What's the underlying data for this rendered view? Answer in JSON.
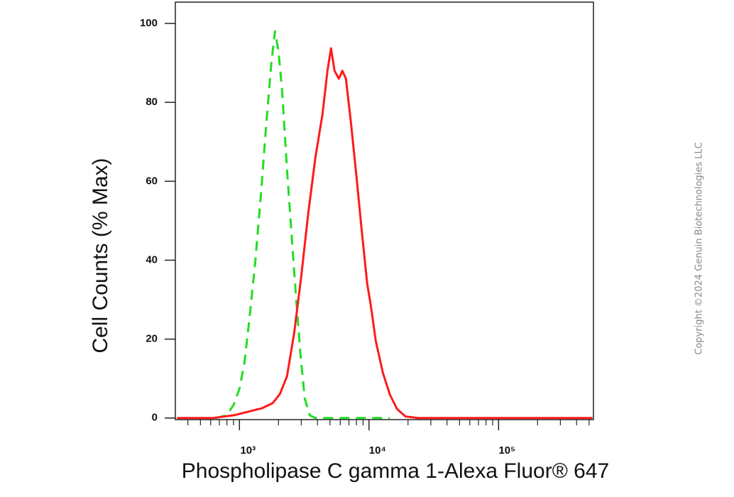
{
  "chart_data": {
    "type": "line",
    "ylabel": "Cell Counts (% Max)",
    "xlabel": "Phospholipase C gamma 1-Alexa Fluor® 647",
    "watermark": "Copyright ©2024 Genuin Biotechnologies LLC",
    "xscale": "log",
    "xlim": [
      320,
      540000
    ],
    "ylim": [
      -0.4,
      105.4
    ],
    "xticks": [
      {
        "value": 1000,
        "label": "10³"
      },
      {
        "value": 10000,
        "label": "10⁴"
      },
      {
        "value": 100000,
        "label": "10⁵"
      }
    ],
    "xminorticks": [
      400,
      500,
      600,
      700,
      800,
      900,
      2000,
      3000,
      4000,
      5000,
      6000,
      7000,
      8000,
      9000,
      20000,
      30000,
      40000,
      50000,
      60000,
      70000,
      80000,
      90000,
      200000,
      300000,
      400000,
      500000
    ],
    "yticks": [
      0,
      20,
      40,
      60,
      80,
      100
    ],
    "series": [
      {
        "color": "#22dd22",
        "dash": true,
        "x": [
          659,
          797,
          904,
          1000,
          1092,
          1193,
          1320,
          1460,
          1615,
          1765,
          1879,
          2002,
          2133,
          2329,
          2544,
          2744,
          2960,
          3193,
          3487,
          3857,
          14510
        ],
        "values": [
          0,
          0.7,
          3.4,
          7.4,
          14,
          25,
          39,
          56,
          75,
          90,
          98,
          93,
          83,
          63,
          45,
          30,
          16,
          5,
          0.7,
          0,
          0
        ]
      },
      {
        "color": "#ff1a1a",
        "dash": false,
        "x": [
          330,
          619,
          904,
          1163,
          1497,
          1809,
          2052,
          2329,
          2642,
          2998,
          3401,
          3857,
          4376,
          4781,
          5091,
          5424,
          5849,
          6231,
          6636,
          7250,
          8021,
          8760,
          9690,
          10320,
          11270,
          12790,
          14510,
          16460,
          19150,
          24040,
          530000
        ],
        "values": [
          0,
          0,
          0.7,
          1.6,
          2.5,
          3.8,
          6.1,
          10.6,
          21.4,
          35.8,
          52,
          66,
          77,
          88,
          93.7,
          88,
          86,
          88,
          86,
          75,
          61,
          48,
          34,
          28.6,
          19.6,
          11.5,
          5.9,
          2.3,
          0.4,
          0,
          0
        ]
      }
    ]
  }
}
